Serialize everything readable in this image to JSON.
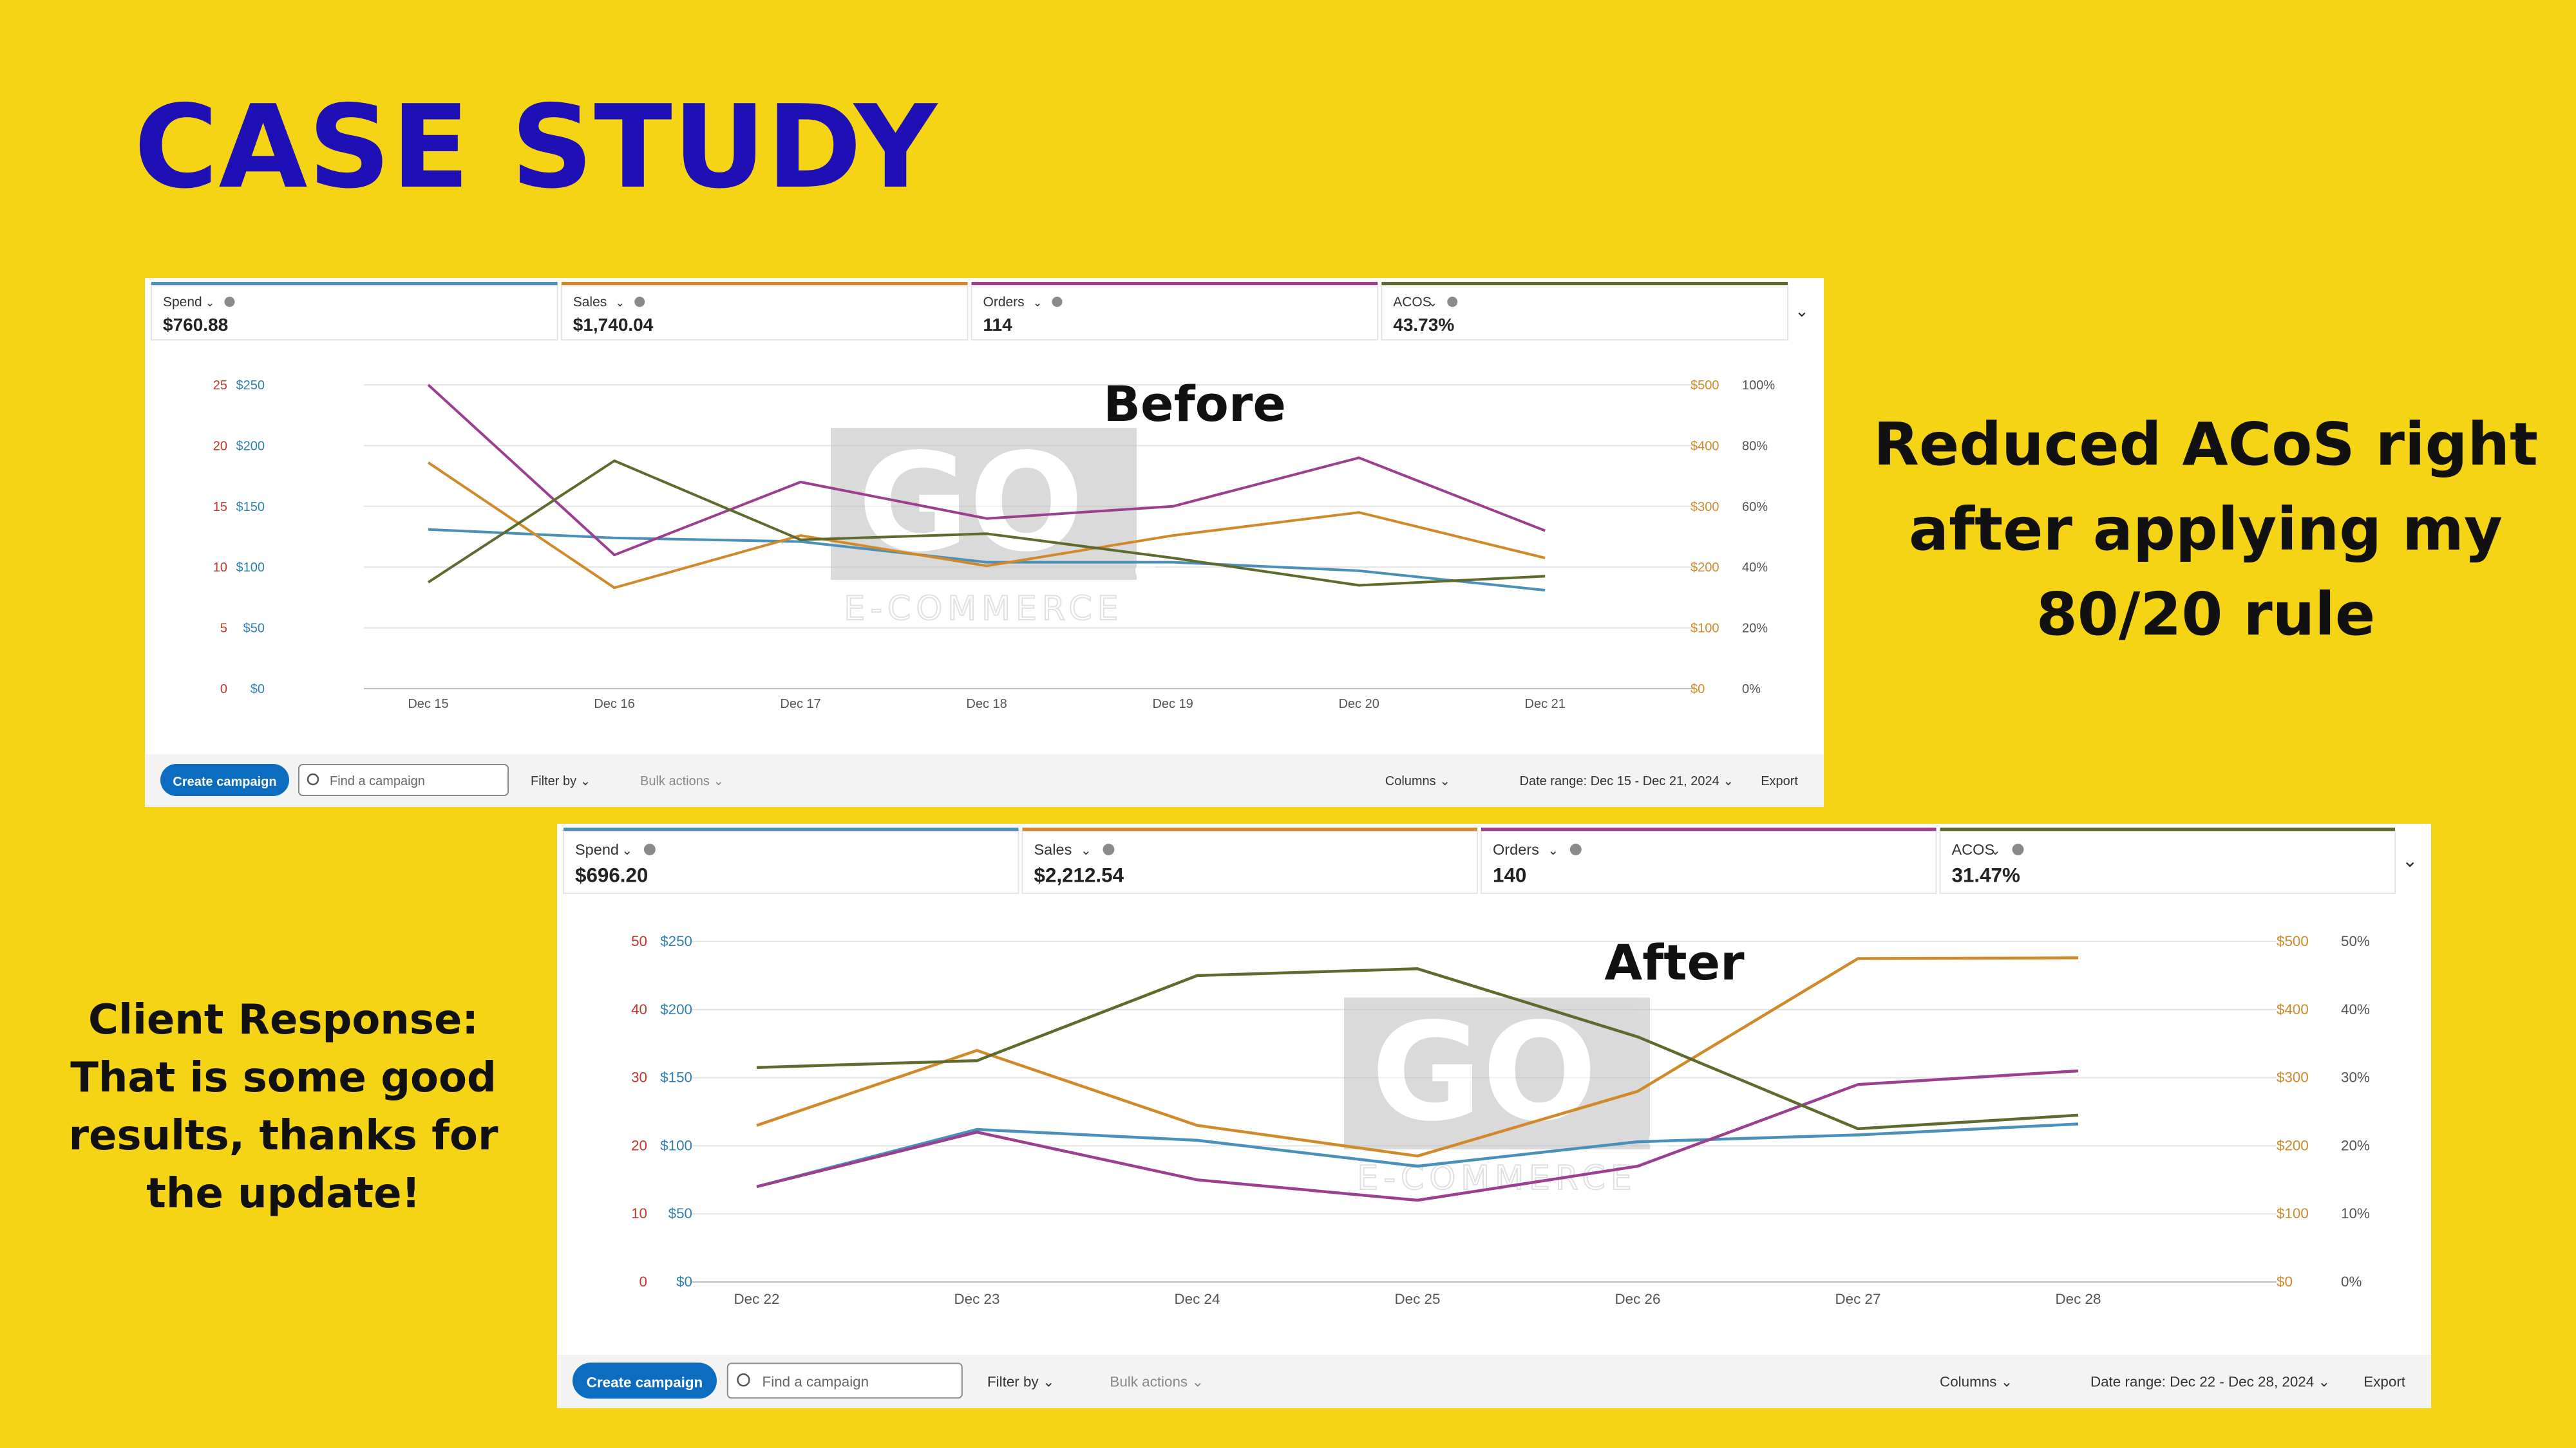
{
  "title": "CASE STUDY",
  "tagline": [
    "Reduced ACoS right",
    "after applying my",
    "80/20 rule"
  ],
  "response": [
    "Client Response:",
    "That is some good",
    "results, thanks for",
    "the update!"
  ],
  "colors": {
    "background": "#f5d415",
    "title": "#1f10b6",
    "spend": "#4a90b8",
    "sales": "#d08a2a",
    "orders": "#9b3f8e",
    "acos": "#5f6b2e",
    "button": "#0b6cc0"
  },
  "toolbar": {
    "create_label": "Create campaign",
    "search_placeholder": "Find a campaign",
    "filter_label": "Filter by",
    "bulk_label": "Bulk actions",
    "columns_label": "Columns",
    "export_label": "Export"
  },
  "watermark": {
    "logo": "GO",
    "subtitle": "E-COMMERCE"
  },
  "chart_data": [
    {
      "type": "line",
      "title": "Before",
      "metrics": [
        {
          "label": "Spend",
          "value": "$760.88"
        },
        {
          "label": "Sales",
          "value": "$1,740.04"
        },
        {
          "label": "Orders",
          "value": "114"
        },
        {
          "label": "ACOS",
          "value": "43.73%"
        }
      ],
      "date_range": "Date range: Dec 15 - Dec 21, 2024",
      "categories": [
        "Dec 15",
        "Dec 16",
        "Dec 17",
        "Dec 18",
        "Dec 19",
        "Dec 20",
        "Dec 21"
      ],
      "axes": {
        "orders": {
          "ticks": [
            "0",
            "5",
            "10",
            "15",
            "20",
            "25"
          ],
          "max": 25
        },
        "spend": {
          "ticks": [
            "$0",
            "$50",
            "$100",
            "$150",
            "$200",
            "$250"
          ],
          "max": 250
        },
        "sales": {
          "ticks": [
            "$0",
            "$100",
            "$200",
            "$300",
            "$400",
            "$500"
          ],
          "max": 500
        },
        "acos": {
          "ticks": [
            "0%",
            "20%",
            "40%",
            "60%",
            "80%",
            "100%"
          ],
          "max": 100
        }
      },
      "series": [
        {
          "name": "Spend",
          "axis": "spend",
          "values": [
            131,
            124,
            121,
            104,
            104,
            97,
            81
          ]
        },
        {
          "name": "Sales",
          "axis": "sales",
          "values": [
            372,
            166,
            252,
            202,
            252,
            290,
            215
          ]
        },
        {
          "name": "Orders",
          "axis": "orders",
          "values": [
            25,
            11,
            17,
            14,
            15,
            19,
            13
          ]
        },
        {
          "name": "ACOS",
          "axis": "acos",
          "values": [
            35,
            75,
            49,
            51,
            43,
            34,
            37
          ]
        }
      ]
    },
    {
      "type": "line",
      "title": "After",
      "metrics": [
        {
          "label": "Spend",
          "value": "$696.20"
        },
        {
          "label": "Sales",
          "value": "$2,212.54"
        },
        {
          "label": "Orders",
          "value": "140"
        },
        {
          "label": "ACOS",
          "value": "31.47%"
        }
      ],
      "date_range": "Date range: Dec 22 - Dec 28, 2024",
      "categories": [
        "Dec 22",
        "Dec 23",
        "Dec 24",
        "Dec 25",
        "Dec 26",
        "Dec 27",
        "Dec 28"
      ],
      "axes": {
        "orders": {
          "ticks": [
            "0",
            "10",
            "20",
            "30",
            "40",
            "50"
          ],
          "max": 50
        },
        "spend": {
          "ticks": [
            "$0",
            "$50",
            "$100",
            "$150",
            "$200",
            "$250"
          ],
          "max": 250
        },
        "sales": {
          "ticks": [
            "$0",
            "$100",
            "$200",
            "$300",
            "$400",
            "$500"
          ],
          "max": 500
        },
        "acos": {
          "ticks": [
            "0%",
            "10%",
            "20%",
            "30%",
            "40%",
            "50%"
          ],
          "max": 50
        }
      },
      "series": [
        {
          "name": "Spend",
          "axis": "spend",
          "values": [
            70,
            112,
            104,
            85,
            103,
            108,
            116
          ]
        },
        {
          "name": "Sales",
          "axis": "sales",
          "values": [
            230,
            340,
            230,
            185,
            280,
            475,
            476
          ]
        },
        {
          "name": "Orders",
          "axis": "orders",
          "values": [
            14,
            22,
            15,
            12,
            17,
            29,
            31
          ]
        },
        {
          "name": "ACOS",
          "axis": "acos",
          "values": [
            31.5,
            32.5,
            45,
            46,
            36,
            22.5,
            24.5
          ]
        }
      ]
    }
  ]
}
